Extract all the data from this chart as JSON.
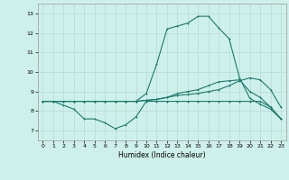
{
  "x": [
    0,
    1,
    2,
    3,
    4,
    5,
    6,
    7,
    8,
    9,
    10,
    11,
    12,
    13,
    14,
    15,
    16,
    17,
    18,
    19,
    20,
    21,
    22,
    23
  ],
  "line1": [
    8.5,
    8.5,
    8.3,
    8.1,
    7.6,
    7.6,
    7.4,
    7.1,
    7.3,
    7.7,
    8.5,
    8.5,
    8.5,
    8.5,
    8.5,
    8.5,
    8.5,
    8.5,
    8.5,
    8.5,
    8.5,
    8.5,
    8.2,
    7.6
  ],
  "line2": [
    8.5,
    8.5,
    8.5,
    8.5,
    8.5,
    8.5,
    8.5,
    8.5,
    8.5,
    8.5,
    8.55,
    8.6,
    8.7,
    8.8,
    8.85,
    8.9,
    9.0,
    9.1,
    9.3,
    9.55,
    9.7,
    9.6,
    9.1,
    8.2
  ],
  "line3": [
    8.5,
    8.5,
    8.5,
    8.5,
    8.5,
    8.5,
    8.5,
    8.5,
    8.5,
    8.5,
    8.55,
    8.6,
    8.7,
    8.9,
    9.0,
    9.1,
    9.3,
    9.5,
    9.55,
    9.6,
    9.0,
    8.7,
    8.2,
    7.6
  ],
  "line4": [
    8.5,
    8.5,
    8.5,
    8.5,
    8.5,
    8.5,
    8.5,
    8.5,
    8.5,
    8.5,
    8.9,
    10.4,
    12.2,
    12.35,
    12.5,
    12.85,
    12.85,
    12.25,
    11.7,
    9.7,
    8.65,
    8.35,
    8.1,
    7.6
  ],
  "line_color": "#1a7a6a",
  "bg_color": "#cef0eb",
  "grid_color": "#b8d8d4",
  "xlabel": "Humidex (Indice chaleur)",
  "ylim": [
    6.5,
    13.5
  ],
  "xlim": [
    -0.5,
    23.5
  ],
  "yticks": [
    7,
    8,
    9,
    10,
    11,
    12,
    13
  ],
  "xticks": [
    0,
    1,
    2,
    3,
    4,
    5,
    6,
    7,
    8,
    9,
    10,
    11,
    12,
    13,
    14,
    15,
    16,
    17,
    18,
    19,
    20,
    21,
    22,
    23
  ]
}
